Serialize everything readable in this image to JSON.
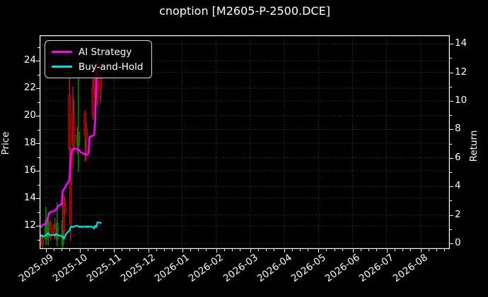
{
  "window": {
    "title": "cnoption [M2605-P-2500.DCE]"
  },
  "chart_data": {
    "type": "candlestick+line",
    "title": "cnoption [M2605-P-2500.DCE]",
    "xlabel": "",
    "ylabel_left": "Price",
    "ylabel_right": "Return",
    "x_tick_labels": [
      "2025-09",
      "2025-10",
      "2025-11",
      "2025-12",
      "2026-01",
      "2026-02",
      "2026-03",
      "2026-04",
      "2026-05",
      "2026-06",
      "2026-07",
      "2026-08"
    ],
    "yticks_left": [
      12,
      14,
      16,
      18,
      20,
      22,
      24
    ],
    "yticks_right": [
      0,
      2,
      4,
      6,
      8,
      10,
      12,
      14
    ],
    "ylim_left": [
      10.3,
      25.85
    ],
    "ylim_right": [
      -0.25,
      14.6
    ],
    "grid": "on",
    "grid_style": "dotted",
    "legend": {
      "position": "upper-left",
      "entries": [
        {
          "label": "AI Strategy",
          "color": "#ff00ff"
        },
        {
          "label": "Buy-and-Hold",
          "color": "#00e0e0"
        }
      ]
    },
    "colors": {
      "background": "#000000",
      "text": "#ffffff",
      "axes": "#ffffff",
      "grid": "#ffffff",
      "candle_up_body": "#007700",
      "candle_up_wick": "#00b000",
      "candle_down_body": "#8b0000",
      "candle_down_wick": "#e02020",
      "ai_strategy": "#ff00ff",
      "buy_and_hold": "#00e0e0"
    },
    "series": [
      {
        "name": "AI Strategy",
        "color": "#ff00ff",
        "width": 2.6,
        "axis": "left",
        "points": [
          [
            "2025-08-26",
            11.85
          ],
          [
            "2025-08-27",
            11.9
          ],
          [
            "2025-08-28",
            11.95
          ],
          [
            "2025-08-29",
            12.05
          ],
          [
            "2025-09-01",
            12.15
          ],
          [
            "2025-09-02",
            12.4
          ],
          [
            "2025-09-03",
            12.7
          ],
          [
            "2025-09-04",
            12.9
          ],
          [
            "2025-09-05",
            13.0
          ],
          [
            "2025-09-08",
            13.05
          ],
          [
            "2025-09-09",
            13.1
          ],
          [
            "2025-09-10",
            13.2
          ],
          [
            "2025-09-11",
            13.3
          ],
          [
            "2025-09-12",
            13.45
          ],
          [
            "2025-09-15",
            13.55
          ],
          [
            "2025-09-16",
            14.5
          ],
          [
            "2025-09-17",
            14.65
          ],
          [
            "2025-09-18",
            14.75
          ],
          [
            "2025-09-19",
            14.95
          ],
          [
            "2025-09-22",
            15.3
          ],
          [
            "2025-09-23",
            16.8
          ],
          [
            "2025-09-24",
            17.45
          ],
          [
            "2025-09-25",
            17.55
          ],
          [
            "2025-09-26",
            17.6
          ],
          [
            "2025-09-29",
            17.6
          ],
          [
            "2025-09-30",
            17.55
          ],
          [
            "2025-10-01",
            17.45
          ],
          [
            "2025-10-02",
            17.35
          ],
          [
            "2025-10-03",
            17.3
          ],
          [
            "2025-10-06",
            17.2
          ],
          [
            "2025-10-07",
            17.15
          ],
          [
            "2025-10-08",
            17.2
          ],
          [
            "2025-10-09",
            17.25
          ],
          [
            "2025-10-10",
            18.45
          ],
          [
            "2025-10-13",
            18.55
          ],
          [
            "2025-10-14",
            18.6
          ],
          [
            "2025-10-15",
            19.6
          ],
          [
            "2025-10-16",
            22.6
          ],
          [
            "2025-10-17",
            23.9
          ],
          [
            "2025-10-20",
            24.35
          ]
        ]
      },
      {
        "name": "Buy-and-Hold",
        "color": "#00e0e0",
        "width": 2.2,
        "axis": "left",
        "points": [
          [
            "2025-08-26",
            11.35
          ],
          [
            "2025-08-27",
            11.25
          ],
          [
            "2025-08-28",
            11.3
          ],
          [
            "2025-08-29",
            11.2
          ],
          [
            "2025-09-01",
            11.3
          ],
          [
            "2025-09-02",
            11.4
          ],
          [
            "2025-09-03",
            11.45
          ],
          [
            "2025-09-04",
            11.35
          ],
          [
            "2025-09-05",
            11.3
          ],
          [
            "2025-09-08",
            11.35
          ],
          [
            "2025-09-09",
            11.3
          ],
          [
            "2025-09-10",
            11.4
          ],
          [
            "2025-09-11",
            11.35
          ],
          [
            "2025-09-12",
            11.3
          ],
          [
            "2025-09-15",
            11.25
          ],
          [
            "2025-09-16",
            11.2
          ],
          [
            "2025-09-17",
            11.05
          ],
          [
            "2025-09-18",
            11.25
          ],
          [
            "2025-09-19",
            11.4
          ],
          [
            "2025-09-22",
            11.65
          ],
          [
            "2025-09-23",
            11.9
          ],
          [
            "2025-09-24",
            11.95
          ],
          [
            "2025-09-25",
            11.9
          ],
          [
            "2025-09-26",
            11.95
          ],
          [
            "2025-09-29",
            12.0
          ],
          [
            "2025-09-30",
            11.95
          ],
          [
            "2025-10-01",
            11.9
          ],
          [
            "2025-10-02",
            11.95
          ],
          [
            "2025-10-03",
            11.9
          ],
          [
            "2025-10-06",
            11.95
          ],
          [
            "2025-10-07",
            11.9
          ],
          [
            "2025-10-08",
            11.95
          ],
          [
            "2025-10-09",
            11.9
          ],
          [
            "2025-10-10",
            11.95
          ],
          [
            "2025-10-13",
            11.9
          ],
          [
            "2025-10-14",
            11.8
          ],
          [
            "2025-10-15",
            12.0
          ],
          [
            "2025-10-16",
            11.9
          ],
          [
            "2025-10-17",
            12.25
          ],
          [
            "2025-10-20",
            12.2
          ]
        ]
      }
    ],
    "candles": [
      {
        "date": "2025-08-27",
        "o": 11.3,
        "h": 11.6,
        "l": 10.5,
        "c": 10.7
      },
      {
        "date": "2025-08-29",
        "o": 11.1,
        "h": 11.4,
        "l": 10.4,
        "c": 10.6
      },
      {
        "date": "2025-09-01",
        "o": 11.0,
        "h": 13.4,
        "l": 10.6,
        "c": 12.4
      },
      {
        "date": "2025-09-03",
        "o": 11.2,
        "h": 13.0,
        "l": 10.6,
        "c": 12.3
      },
      {
        "date": "2025-09-05",
        "o": 12.2,
        "h": 12.4,
        "l": 10.9,
        "c": 11.1
      },
      {
        "date": "2025-09-08",
        "o": 11.9,
        "h": 12.1,
        "l": 11.2,
        "c": 11.3
      },
      {
        "date": "2025-09-09",
        "o": 11.8,
        "h": 12.6,
        "l": 11.0,
        "c": 11.2
      },
      {
        "date": "2025-09-11",
        "o": 11.0,
        "h": 13.7,
        "l": 10.5,
        "c": 12.2
      },
      {
        "date": "2025-09-16",
        "o": 10.6,
        "h": 13.5,
        "l": 10.2,
        "c": 12.4
      },
      {
        "date": "2025-09-17",
        "o": 13.9,
        "h": 14.2,
        "l": 11.0,
        "c": 11.6
      },
      {
        "date": "2025-09-18",
        "o": 13.5,
        "h": 14.1,
        "l": 12.8,
        "c": 13.0
      },
      {
        "date": "2025-09-22",
        "o": 21.5,
        "h": 23.4,
        "l": 17.0,
        "c": 17.6
      },
      {
        "date": "2025-09-23",
        "o": 17.6,
        "h": 17.7,
        "l": 10.9,
        "c": 12.1
      },
      {
        "date": "2025-09-25",
        "o": 20.2,
        "h": 22.1,
        "l": 16.2,
        "c": 17.9
      },
      {
        "date": "2025-09-26",
        "o": 19.8,
        "h": 21.2,
        "l": 17.5,
        "c": 18.1
      },
      {
        "date": "2025-09-29",
        "o": 18.6,
        "h": 19.2,
        "l": 17.2,
        "c": 17.9
      },
      {
        "date": "2025-09-30",
        "o": 17.8,
        "h": 24.3,
        "l": 15.9,
        "c": 18.8
      },
      {
        "date": "2025-10-06",
        "o": 20.2,
        "h": 20.4,
        "l": 16.7,
        "c": 18.6
      },
      {
        "date": "2025-10-07",
        "o": 19.0,
        "h": 19.5,
        "l": 16.7,
        "c": 18.3
      },
      {
        "date": "2025-10-13",
        "o": 22.0,
        "h": 22.7,
        "l": 19.7,
        "c": 20.1
      },
      {
        "date": "2025-10-15",
        "o": 23.0,
        "h": 23.8,
        "l": 20.5,
        "c": 21.5
      },
      {
        "date": "2025-10-17",
        "o": 23.5,
        "h": 24.2,
        "l": 20.7,
        "c": 21.2
      },
      {
        "date": "2025-10-20",
        "o": 23.2,
        "h": 23.6,
        "l": 20.9,
        "c": 21.9
      }
    ]
  }
}
